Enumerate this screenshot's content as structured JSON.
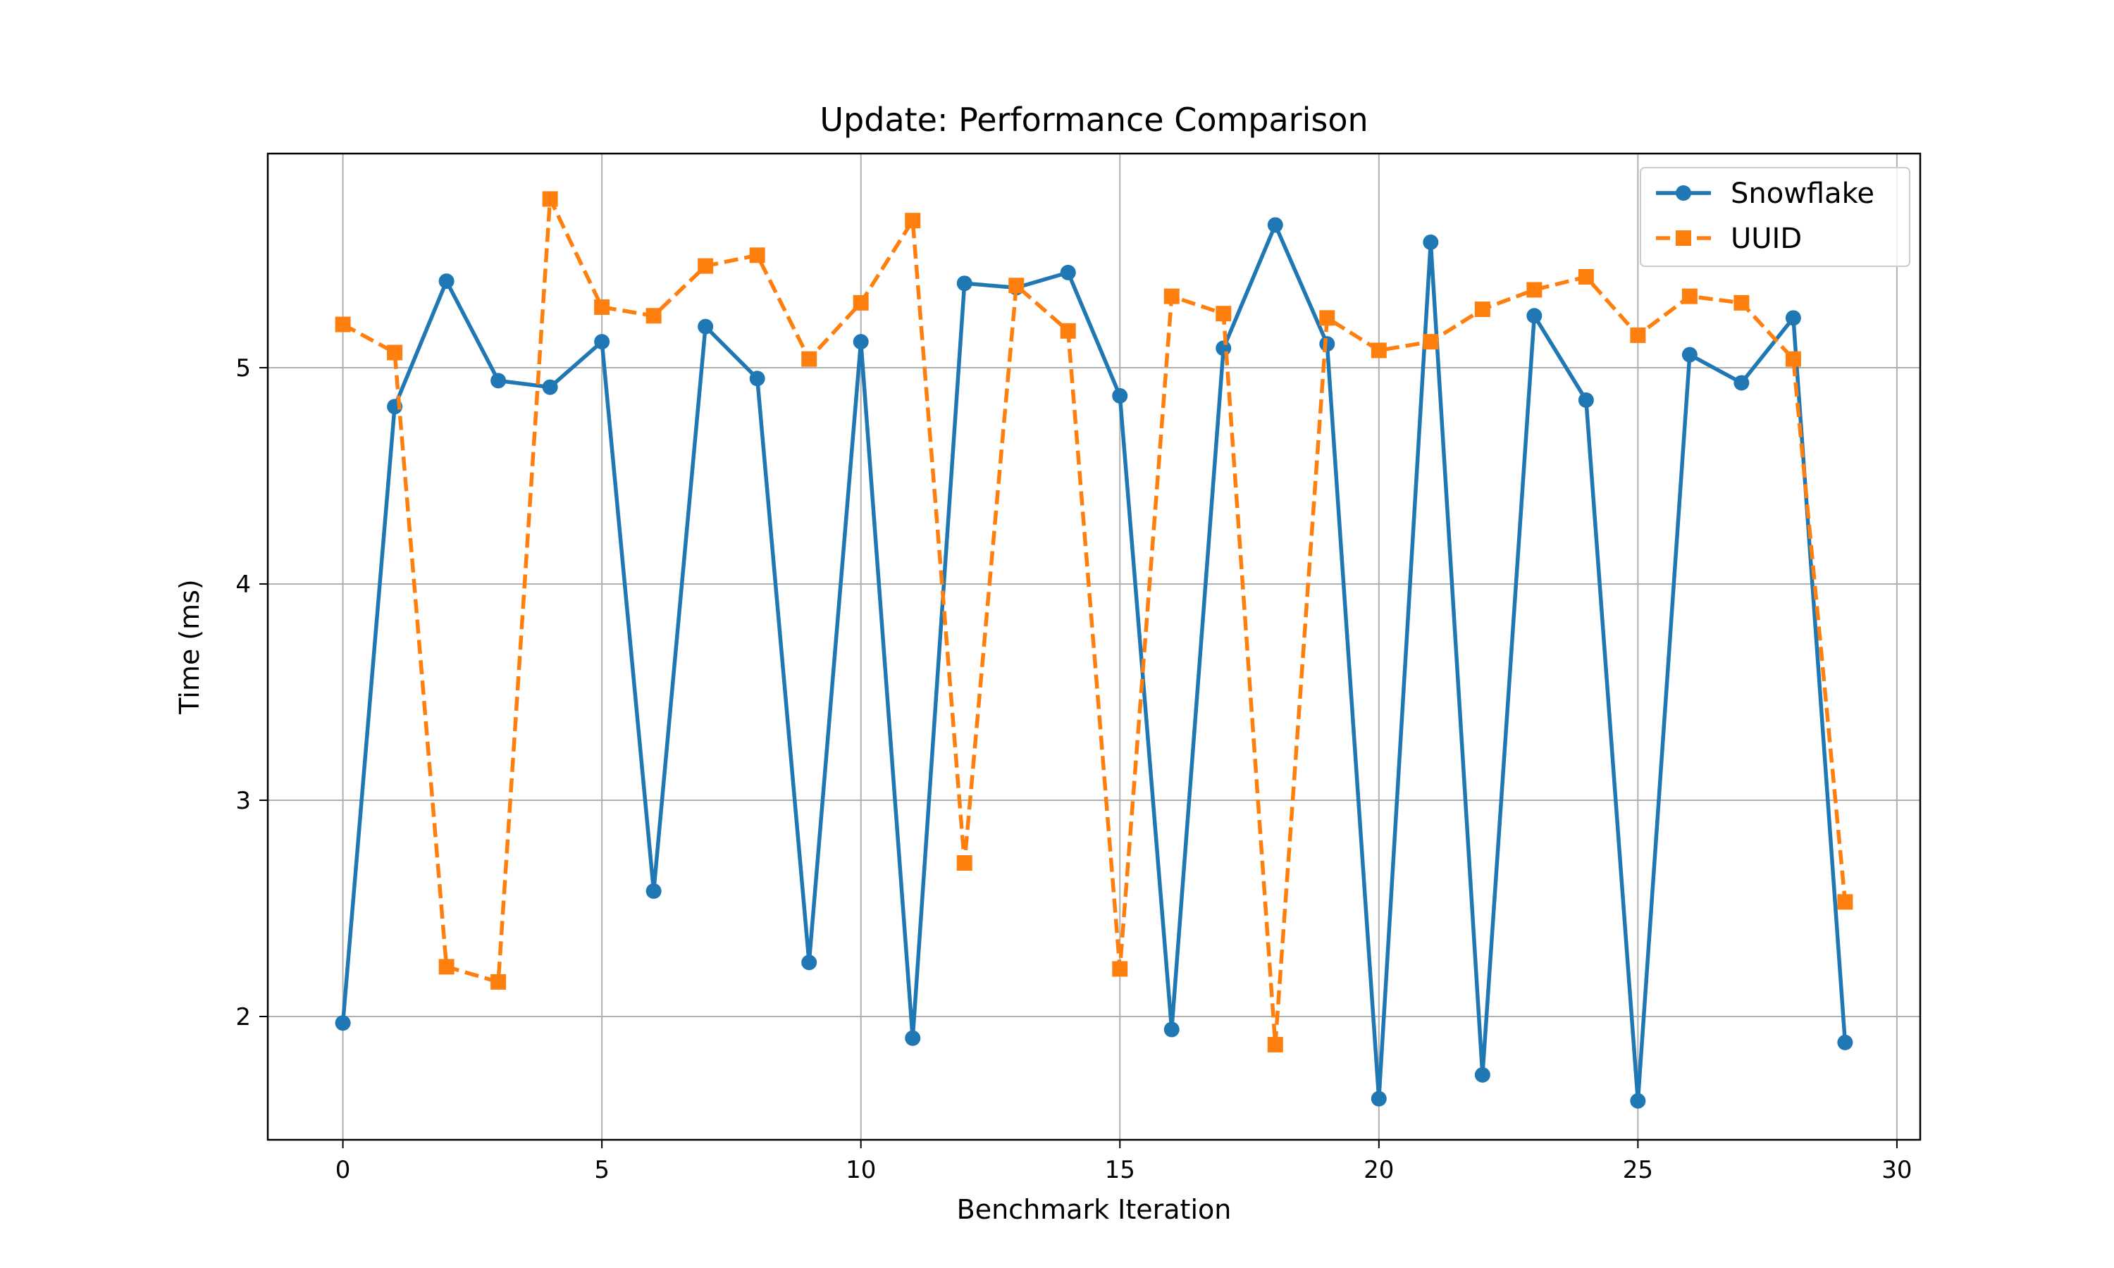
{
  "chart_data": {
    "type": "line",
    "title": "Update: Performance Comparison",
    "xlabel": "Benchmark Iteration",
    "ylabel": "Time (ms)",
    "xlim": [
      -1.45,
      30.45
    ],
    "ylim": [
      1.43,
      5.99
    ],
    "xticks": [
      0,
      5,
      10,
      15,
      20,
      25,
      30
    ],
    "yticks": [
      2,
      3,
      4,
      5
    ],
    "grid": true,
    "legend_position": "top-right",
    "x": [
      0,
      1,
      2,
      3,
      4,
      5,
      6,
      7,
      8,
      9,
      10,
      11,
      12,
      13,
      14,
      15,
      16,
      17,
      18,
      19,
      20,
      21,
      22,
      23,
      24,
      25,
      26,
      27,
      28,
      29
    ],
    "series": [
      {
        "name": "Snowflake",
        "color": "#1f77b4",
        "line_style": "solid",
        "marker": "circle",
        "values": [
          1.97,
          4.82,
          5.4,
          4.94,
          4.91,
          5.12,
          2.58,
          5.19,
          4.95,
          2.25,
          5.12,
          1.9,
          5.39,
          5.37,
          5.44,
          4.87,
          1.94,
          5.09,
          5.66,
          5.11,
          1.62,
          5.58,
          1.73,
          5.24,
          4.85,
          1.61,
          5.06,
          4.93,
          5.23,
          1.88
        ]
      },
      {
        "name": "UUID",
        "color": "#ff7f0e",
        "line_style": "dashed",
        "marker": "square",
        "values": [
          5.2,
          5.07,
          2.23,
          2.16,
          5.78,
          5.28,
          5.24,
          5.47,
          5.52,
          5.04,
          5.3,
          5.68,
          2.71,
          5.38,
          5.17,
          2.22,
          5.33,
          5.25,
          1.87,
          5.23,
          5.08,
          5.12,
          5.27,
          5.36,
          5.42,
          5.15,
          5.33,
          5.3,
          5.04,
          2.53
        ]
      }
    ]
  }
}
